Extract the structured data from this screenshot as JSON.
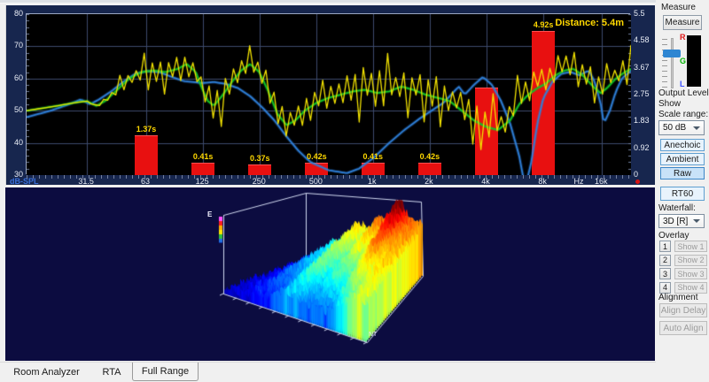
{
  "top_chart": {
    "distance_label": "Distance: 5.4m",
    "y_axis_label": "dB-SPL",
    "db_range": [
      30,
      80
    ],
    "grid_db": [
      40,
      50,
      60,
      70
    ],
    "rt60_axis_max": 5.5,
    "y_left": [
      {
        "label": "80",
        "value": 80
      },
      {
        "label": "70",
        "value": 70
      },
      {
        "label": "60",
        "value": 60
      },
      {
        "label": "50",
        "value": 50
      },
      {
        "label": "40",
        "value": 40
      },
      {
        "label": "30",
        "value": 30
      }
    ],
    "y_right": [
      {
        "label": "5.5",
        "value": 5.5
      },
      {
        "label": "4.58",
        "value": 4.58
      },
      {
        "label": "3.67",
        "value": 3.67
      },
      {
        "label": "2.75",
        "value": 2.75
      },
      {
        "label": "1.83",
        "value": 1.83
      },
      {
        "label": "0.92",
        "value": 0.92
      },
      {
        "label": "0",
        "value": 0
      }
    ],
    "x_ticks": [
      {
        "label": "31.5",
        "f": 0.1,
        "grid": true
      },
      {
        "label": "63",
        "f": 0.198,
        "grid": true
      },
      {
        "label": "125",
        "f": 0.292,
        "grid": true
      },
      {
        "label": "250",
        "f": 0.386,
        "grid": true
      },
      {
        "label": "500",
        "f": 0.48,
        "grid": true
      },
      {
        "label": "1k",
        "f": 0.573,
        "grid": true
      },
      {
        "label": "2k",
        "f": 0.667,
        "grid": true
      },
      {
        "label": "4k",
        "f": 0.761,
        "grid": true
      },
      {
        "label": "8k",
        "f": 0.855,
        "grid": true
      },
      {
        "label": "Hz",
        "f": 0.915,
        "grid": false
      },
      {
        "label": "16k",
        "f": 0.952,
        "grid": true
      }
    ],
    "rt60_bars": [
      {
        "f": 0.198,
        "value": 1.37,
        "label": "1.37s"
      },
      {
        "f": 0.292,
        "value": 0.41,
        "label": "0.41s"
      },
      {
        "f": 0.386,
        "value": 0.37,
        "label": "0.37s"
      },
      {
        "f": 0.48,
        "value": 0.42,
        "label": "0.42s"
      },
      {
        "f": 0.573,
        "value": 0.41,
        "label": "0.41s"
      },
      {
        "f": 0.667,
        "value": 0.42,
        "label": "0.42s"
      },
      {
        "f": 0.761,
        "value": 3.0,
        "label": ""
      },
      {
        "f": 0.855,
        "value": 4.92,
        "label": "4.92s"
      }
    ],
    "series": {
      "blue": [
        [
          0,
          48
        ],
        [
          0.04,
          50
        ],
        [
          0.07,
          52
        ],
        [
          0.09,
          53.5
        ],
        [
          0.105,
          52
        ],
        [
          0.12,
          53.5
        ],
        [
          0.14,
          56
        ],
        [
          0.16,
          59
        ],
        [
          0.18,
          61.5
        ],
        [
          0.2,
          62.3
        ],
        [
          0.22,
          62
        ],
        [
          0.24,
          60.5
        ],
        [
          0.26,
          59.2
        ],
        [
          0.29,
          58.6
        ],
        [
          0.31,
          58.9
        ],
        [
          0.33,
          58.3
        ],
        [
          0.35,
          57
        ],
        [
          0.37,
          54.5
        ],
        [
          0.39,
          51
        ],
        [
          0.41,
          47
        ],
        [
          0.43,
          42
        ],
        [
          0.45,
          37.5
        ],
        [
          0.47,
          34
        ],
        [
          0.5,
          31.5
        ],
        [
          0.53,
          30.6
        ],
        [
          0.55,
          32
        ],
        [
          0.575,
          35.5
        ],
        [
          0.6,
          40
        ],
        [
          0.625,
          44
        ],
        [
          0.65,
          47.5
        ],
        [
          0.67,
          50
        ],
        [
          0.69,
          52.5
        ],
        [
          0.705,
          55.5
        ],
        [
          0.715,
          57.5
        ],
        [
          0.725,
          55
        ],
        [
          0.74,
          58
        ],
        [
          0.755,
          60.5
        ],
        [
          0.77,
          58
        ],
        [
          0.785,
          53
        ],
        [
          0.8,
          46
        ],
        [
          0.815,
          36
        ],
        [
          0.825,
          26
        ],
        [
          0.835,
          34
        ],
        [
          0.845,
          46
        ],
        [
          0.855,
          54
        ],
        [
          0.87,
          59
        ],
        [
          0.885,
          61.5
        ],
        [
          0.9,
          62
        ],
        [
          0.915,
          61
        ],
        [
          0.93,
          62.5
        ],
        [
          0.94,
          59
        ],
        [
          0.95,
          52
        ],
        [
          0.955,
          46
        ],
        [
          0.965,
          50
        ],
        [
          0.975,
          56
        ],
        [
          0.985,
          60
        ],
        [
          1,
          62.5
        ]
      ],
      "green": [
        [
          0,
          50
        ],
        [
          0.05,
          51.5
        ],
        [
          0.08,
          52.5
        ],
        [
          0.1,
          53
        ],
        [
          0.115,
          51.5
        ],
        [
          0.13,
          53
        ],
        [
          0.15,
          56.5
        ],
        [
          0.17,
          60
        ],
        [
          0.19,
          62
        ],
        [
          0.21,
          62.5
        ],
        [
          0.23,
          62
        ],
        [
          0.25,
          63
        ],
        [
          0.265,
          64.5
        ],
        [
          0.28,
          62
        ],
        [
          0.29,
          57
        ],
        [
          0.3,
          53
        ],
        [
          0.31,
          51.5
        ],
        [
          0.325,
          55
        ],
        [
          0.34,
          59
        ],
        [
          0.355,
          62.5
        ],
        [
          0.37,
          64.5
        ],
        [
          0.385,
          62
        ],
        [
          0.4,
          56
        ],
        [
          0.415,
          49
        ],
        [
          0.43,
          45.5
        ],
        [
          0.445,
          47
        ],
        [
          0.46,
          50
        ],
        [
          0.48,
          52.5
        ],
        [
          0.5,
          54
        ],
        [
          0.52,
          55
        ],
        [
          0.54,
          56
        ],
        [
          0.56,
          56.5
        ],
        [
          0.58,
          55.5
        ],
        [
          0.6,
          56
        ],
        [
          0.62,
          57.5
        ],
        [
          0.64,
          56.5
        ],
        [
          0.66,
          55
        ],
        [
          0.68,
          54
        ],
        [
          0.7,
          53
        ],
        [
          0.72,
          50
        ],
        [
          0.74,
          47
        ],
        [
          0.76,
          45
        ],
        [
          0.78,
          44
        ],
        [
          0.8,
          47
        ],
        [
          0.815,
          52
        ],
        [
          0.83,
          55
        ],
        [
          0.845,
          57
        ],
        [
          0.86,
          58.5
        ],
        [
          0.875,
          61
        ],
        [
          0.89,
          62.5
        ],
        [
          0.905,
          63
        ],
        [
          0.92,
          61
        ],
        [
          0.93,
          59
        ],
        [
          0.94,
          57
        ],
        [
          0.95,
          55.5
        ],
        [
          0.96,
          57
        ],
        [
          0.975,
          60
        ],
        [
          0.99,
          62
        ],
        [
          1,
          63
        ]
      ],
      "yellow": {
        "amp": [
          [
            0,
            0
          ],
          [
            0.1,
            0
          ],
          [
            0.14,
            2
          ],
          [
            0.2,
            4
          ],
          [
            0.28,
            6
          ],
          [
            0.34,
            7
          ],
          [
            0.42,
            7
          ],
          [
            0.55,
            7.5
          ],
          [
            0.68,
            7
          ],
          [
            0.78,
            6
          ],
          [
            0.85,
            5
          ],
          [
            0.92,
            4.5
          ],
          [
            1,
            4
          ]
        ],
        "bias": [
          [
            0,
            0
          ],
          [
            0.3,
            0
          ],
          [
            0.5,
            1
          ],
          [
            0.7,
            1.5
          ],
          [
            0.85,
            2
          ],
          [
            1,
            1.5
          ]
        ],
        "seed": 7,
        "points": 150
      }
    },
    "colors": {
      "bg": "#000000",
      "grid": "#3d4a6d",
      "bar": "#e81010",
      "bar_label": "#ffd800",
      "distance": "#ffd800",
      "yellow": "#f2e200",
      "green": "#12c428",
      "blue": "#2e7fd8",
      "axis_text": "#e9edf6",
      "panel": "#17264e",
      "minor_tick": "#6f7c9c"
    }
  },
  "waterfall": {
    "bg": "#0c0c40",
    "energy_label": "E",
    "corner_label": "NT",
    "wire_color": "#d0d8f0",
    "colorbar": [
      "#ff50ff",
      "#ff2020",
      "#ffb000",
      "#ffe800",
      "#30c040",
      "#2070e0",
      "#1030a0"
    ]
  },
  "sidebar": {
    "measure_group_label": "Measure",
    "measure_button": "Measure",
    "meter": {
      "r": "R",
      "g": "G",
      "l": "L"
    },
    "meter_colors": {
      "r": "#e01818",
      "g": "#00b400",
      "l": "#3c50ff"
    },
    "output_level_label": "Output Level",
    "show_label": "Show",
    "scale_range_label": "Scale range:",
    "scale_range_value": "50 dB",
    "buttons": [
      "Anechoic",
      "Ambient",
      "Raw"
    ],
    "rt60_button": "RT60",
    "waterfall_label": "Waterfall:",
    "waterfall_value": "3D [R]",
    "overlay_label": "Overlay",
    "overlay_rows": [
      {
        "num": "1",
        "label": "Show 1"
      },
      {
        "num": "2",
        "label": "Show 2"
      },
      {
        "num": "3",
        "label": "Show 3"
      },
      {
        "num": "4",
        "label": "Show 4"
      }
    ],
    "alignment_label": "Alignment",
    "align_delay_button": "Align Delay",
    "auto_align_button": "Auto Align"
  },
  "tabs": {
    "items": [
      {
        "label": "Room Analyzer",
        "selected": false
      },
      {
        "label": "RTA",
        "selected": false
      },
      {
        "label": "Full Range",
        "selected": true
      }
    ]
  }
}
